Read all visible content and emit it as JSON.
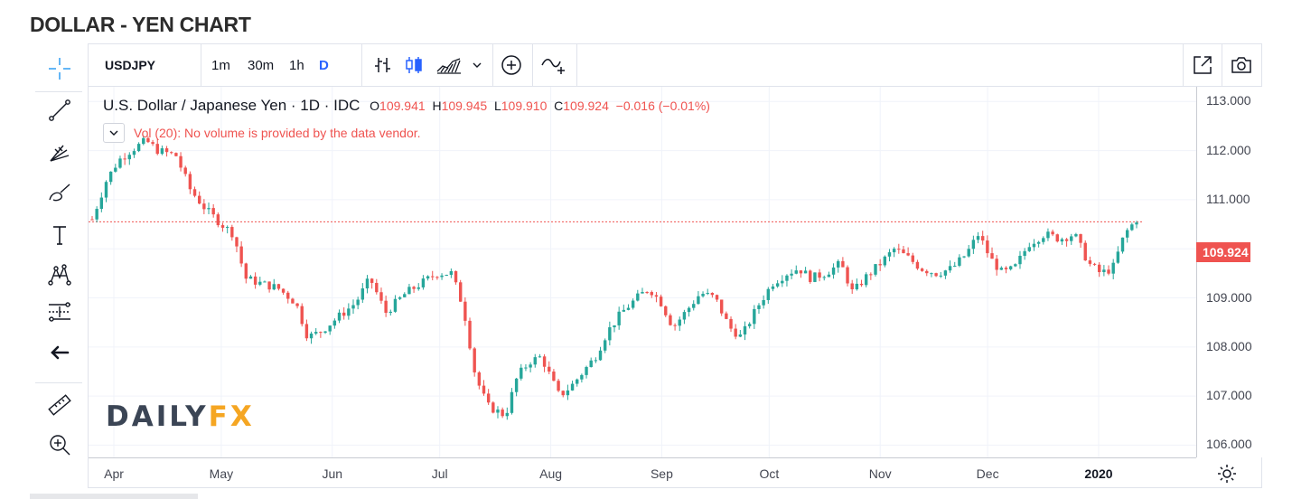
{
  "page": {
    "title": "DOLLAR - YEN CHART"
  },
  "toolbar": {
    "symbol": "USDJPY",
    "intervals": [
      "1m",
      "30m",
      "1h",
      "D"
    ],
    "active_interval": "D",
    "icons": [
      "bar-chart-icon",
      "candles-icon",
      "area-chart-icon",
      "chevron-down-icon",
      "add-circle-icon",
      "compare-icon",
      "fullscreen-icon",
      "camera-icon"
    ]
  },
  "left_tools": [
    "crosshair-icon",
    "trendline-icon",
    "fib-icon",
    "brush-icon",
    "text-icon",
    "pattern-icon",
    "measure-range-icon",
    "back-arrow-icon",
    "ruler-icon",
    "zoom-in-icon"
  ],
  "legend": {
    "name": "U.S. Dollar / Japanese Yen · 1D · IDC",
    "o_label": "O",
    "o": "109.941",
    "h_label": "H",
    "h": "109.945",
    "l_label": "L",
    "l": "109.910",
    "c_label": "C",
    "c": "109.924",
    "change": "−0.016 (−0.01%)"
  },
  "volume_note": "Vol (20): No volume is provided by the data vendor.",
  "logo": {
    "part1": "DAILY",
    "part2": "FX"
  },
  "colors": {
    "up": "#26a69a",
    "down": "#ef5350",
    "grid": "#f0f3fa",
    "accent": "#2962ff"
  },
  "chart_data": {
    "type": "candlestick",
    "y_ticks": [
      "113.000",
      "112.000",
      "111.000",
      "110.000",
      "109.000",
      "108.000",
      "107.000",
      "106.000"
    ],
    "y_tick_values": [
      113,
      112,
      111,
      110,
      109,
      108,
      107,
      106
    ],
    "x_ticks": [
      "Apr",
      "May",
      "Jun",
      "Jul",
      "Aug",
      "Sep",
      "Oct",
      "Nov",
      "Dec",
      "2020"
    ],
    "last_price": "109.924",
    "last_price_value": 109.924,
    "reference_line": 110.55,
    "ylim": [
      105.75,
      113.3
    ],
    "close_path": [
      [
        0,
        110.6
      ],
      [
        12,
        111.4
      ],
      [
        22,
        111.8
      ],
      [
        32,
        112.0
      ],
      [
        45,
        112.2
      ],
      [
        55,
        112.0
      ],
      [
        70,
        111.9
      ],
      [
        82,
        111.2
      ],
      [
        95,
        110.8
      ],
      [
        108,
        110.5
      ],
      [
        118,
        110.3
      ],
      [
        128,
        109.4
      ],
      [
        140,
        109.3
      ],
      [
        155,
        109.2
      ],
      [
        170,
        108.9
      ],
      [
        180,
        108.2
      ],
      [
        190,
        108.3
      ],
      [
        205,
        108.6
      ],
      [
        220,
        108.9
      ],
      [
        232,
        109.4
      ],
      [
        245,
        108.7
      ],
      [
        262,
        109.1
      ],
      [
        275,
        109.3
      ],
      [
        288,
        109.5
      ],
      [
        300,
        109.5
      ],
      [
        310,
        108.8
      ],
      [
        320,
        107.4
      ],
      [
        330,
        106.8
      ],
      [
        345,
        106.6
      ],
      [
        355,
        107.4
      ],
      [
        365,
        107.7
      ],
      [
        375,
        107.8
      ],
      [
        390,
        107.0
      ],
      [
        400,
        107.2
      ],
      [
        410,
        107.5
      ],
      [
        420,
        107.8
      ],
      [
        430,
        108.3
      ],
      [
        442,
        108.7
      ],
      [
        455,
        109.0
      ],
      [
        465,
        109.2
      ],
      [
        475,
        108.9
      ],
      [
        485,
        108.4
      ],
      [
        495,
        108.7
      ],
      [
        508,
        109.1
      ],
      [
        520,
        109.0
      ],
      [
        532,
        108.4
      ],
      [
        542,
        108.2
      ],
      [
        555,
        108.8
      ],
      [
        568,
        109.3
      ],
      [
        580,
        109.5
      ],
      [
        590,
        109.6
      ],
      [
        600,
        109.4
      ],
      [
        612,
        109.5
      ],
      [
        625,
        109.7
      ],
      [
        635,
        109.1
      ],
      [
        645,
        109.4
      ],
      [
        658,
        109.7
      ],
      [
        670,
        110.0
      ],
      [
        682,
        109.8
      ],
      [
        692,
        109.6
      ],
      [
        705,
        109.5
      ],
      [
        718,
        109.6
      ],
      [
        730,
        109.9
      ],
      [
        740,
        110.3
      ],
      [
        750,
        109.8
      ],
      [
        760,
        109.5
      ],
      [
        770,
        109.6
      ],
      [
        782,
        110.1
      ],
      [
        795,
        110.3
      ],
      [
        808,
        110.2
      ],
      [
        820,
        110.3
      ],
      [
        832,
        109.7
      ],
      [
        842,
        109.5
      ],
      [
        852,
        109.6
      ],
      [
        862,
        110.3
      ],
      [
        872,
        110.6
      ]
    ],
    "x_days": 872
  }
}
